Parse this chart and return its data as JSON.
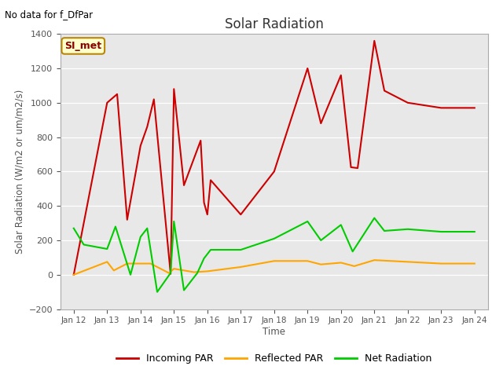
{
  "title": "Solar Radiation",
  "subtitle": "No data for f_DfPar",
  "xlabel": "Time",
  "ylabel": "Solar Radiation (W/m2 or um/m2/s)",
  "ylim": [
    -200,
    1400
  ],
  "plot_bg_color": "#e8e8e8",
  "fig_bg_color": "#ffffff",
  "legend_label": "SI_met",
  "series": {
    "incoming_par": {
      "label": "Incoming PAR",
      "color": "#cc0000",
      "x": [
        12.0,
        13.0,
        13.3,
        13.6,
        14.0,
        14.2,
        14.4,
        14.9,
        15.0,
        15.3,
        15.8,
        15.9,
        16.0,
        16.1,
        17.0,
        18.0,
        19.0,
        19.4,
        20.0,
        20.3,
        20.5,
        21.0,
        21.3,
        22.0,
        23.0,
        24.0
      ],
      "values": [
        0,
        1000,
        1050,
        320,
        750,
        860,
        1020,
        5,
        1080,
        520,
        780,
        420,
        350,
        550,
        350,
        600,
        1200,
        880,
        1160,
        625,
        620,
        1360,
        1070,
        1000,
        970,
        970
      ]
    },
    "reflected_par": {
      "label": "Reflected PAR",
      "color": "#ffa500",
      "x": [
        12.0,
        13.0,
        13.2,
        13.6,
        14.0,
        14.3,
        14.85,
        15.0,
        15.6,
        16.0,
        17.0,
        18.0,
        19.0,
        19.4,
        20.0,
        20.4,
        21.0,
        22.0,
        23.0,
        24.0
      ],
      "values": [
        0,
        75,
        25,
        65,
        65,
        65,
        10,
        35,
        15,
        20,
        45,
        80,
        80,
        60,
        70,
        50,
        85,
        75,
        65,
        65
      ]
    },
    "net_radiation": {
      "label": "Net Radiation",
      "color": "#00cc00",
      "x": [
        12.0,
        12.3,
        13.0,
        13.25,
        13.7,
        14.0,
        14.2,
        14.5,
        14.9,
        15.0,
        15.3,
        15.7,
        15.9,
        16.1,
        17.0,
        18.0,
        19.0,
        19.4,
        20.0,
        20.35,
        21.0,
        21.3,
        22.0,
        23.0,
        24.0
      ],
      "values": [
        270,
        175,
        150,
        280,
        0,
        220,
        270,
        -100,
        10,
        310,
        -90,
        10,
        95,
        145,
        145,
        210,
        310,
        200,
        290,
        135,
        330,
        255,
        265,
        250,
        250
      ]
    }
  },
  "xtick_positions": [
    12,
    13,
    14,
    15,
    16,
    17,
    18,
    19,
    20,
    21,
    22,
    23,
    24
  ],
  "xtick_labels": [
    "Jan 12",
    "Jan 13",
    "Jan 14",
    "Jan 15",
    "Jan 16",
    "Jan 17",
    "Jan 18",
    "Jan 19",
    "Jan 20",
    "Jan 21",
    "Jan 22",
    "Jan 23",
    "Jan 24"
  ],
  "xlim": [
    11.6,
    24.4
  ]
}
